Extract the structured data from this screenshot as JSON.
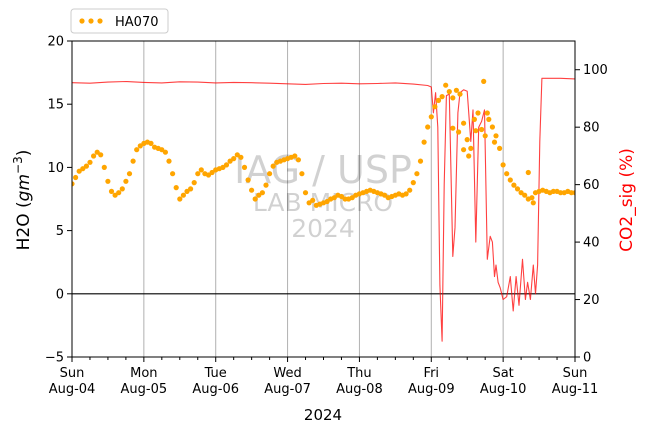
{
  "chart_data": {
    "type": "line",
    "xlabel": "2024",
    "ylabel": "H2O",
    "ylabel_unit_base": "gm",
    "ylabel_unit_exp": "−3",
    "y2label": "CO2_sig (%)",
    "x_range": [
      "2024-08-04",
      "2024-08-11"
    ],
    "ylim": [
      -5,
      20
    ],
    "y2lim": [
      0,
      110
    ],
    "yticks": [
      -5,
      0,
      5,
      10,
      15,
      20
    ],
    "y2ticks": [
      0,
      20,
      40,
      60,
      80,
      100
    ],
    "xticks": [
      {
        "day": "Sun",
        "date": "Aug-04"
      },
      {
        "day": "Mon",
        "date": "Aug-05"
      },
      {
        "day": "Tue",
        "date": "Aug-06"
      },
      {
        "day": "Wed",
        "date": "Aug-07"
      },
      {
        "day": "Thu",
        "date": "Aug-08"
      },
      {
        "day": "Fri",
        "date": "Aug-09"
      },
      {
        "day": "Sat",
        "date": "Aug-10"
      },
      {
        "day": "Sun",
        "date": "Aug-11"
      }
    ],
    "grid": "vertical at day ticks",
    "zero_line": true,
    "legend": {
      "position": "top-left",
      "entries": [
        "HA070"
      ]
    },
    "watermark": [
      "IAG / USP",
      "LAB MICRO",
      "2024"
    ],
    "colors": {
      "h2o": "#ffa500",
      "co2": "#ff0000",
      "grid": "#b0b0b0"
    },
    "series": [
      {
        "name": "HA070",
        "axis": "left",
        "style": "dots",
        "points": [
          [
            0.0,
            8.7
          ],
          [
            0.05,
            9.2
          ],
          [
            0.1,
            9.7
          ],
          [
            0.15,
            9.9
          ],
          [
            0.2,
            10.1
          ],
          [
            0.25,
            10.4
          ],
          [
            0.3,
            10.9
          ],
          [
            0.35,
            11.2
          ],
          [
            0.4,
            11.0
          ],
          [
            0.45,
            10.0
          ],
          [
            0.5,
            8.9
          ],
          [
            0.55,
            8.1
          ],
          [
            0.6,
            7.8
          ],
          [
            0.65,
            8.0
          ],
          [
            0.7,
            8.3
          ],
          [
            0.75,
            8.9
          ],
          [
            0.8,
            9.5
          ],
          [
            0.85,
            10.5
          ],
          [
            0.9,
            11.4
          ],
          [
            0.95,
            11.7
          ],
          [
            1.0,
            11.9
          ],
          [
            1.05,
            12.0
          ],
          [
            1.1,
            11.9
          ],
          [
            1.15,
            11.6
          ],
          [
            1.2,
            11.5
          ],
          [
            1.25,
            11.4
          ],
          [
            1.3,
            11.2
          ],
          [
            1.35,
            10.5
          ],
          [
            1.4,
            9.5
          ],
          [
            1.45,
            8.4
          ],
          [
            1.5,
            7.5
          ],
          [
            1.55,
            7.8
          ],
          [
            1.6,
            8.1
          ],
          [
            1.65,
            8.3
          ],
          [
            1.7,
            8.8
          ],
          [
            1.75,
            9.5
          ],
          [
            1.8,
            9.8
          ],
          [
            1.85,
            9.5
          ],
          [
            1.9,
            9.4
          ],
          [
            1.95,
            9.6
          ],
          [
            2.0,
            9.8
          ],
          [
            2.05,
            9.9
          ],
          [
            2.1,
            10.0
          ],
          [
            2.15,
            10.2
          ],
          [
            2.2,
            10.5
          ],
          [
            2.25,
            10.7
          ],
          [
            2.3,
            11.0
          ],
          [
            2.35,
            10.8
          ],
          [
            2.4,
            10.0
          ],
          [
            2.45,
            9.0
          ],
          [
            2.5,
            8.2
          ],
          [
            2.55,
            7.5
          ],
          [
            2.6,
            7.8
          ],
          [
            2.65,
            8.0
          ],
          [
            2.7,
            8.6
          ],
          [
            2.75,
            9.5
          ],
          [
            2.8,
            10.1
          ],
          [
            2.85,
            10.4
          ],
          [
            2.9,
            10.5
          ],
          [
            2.95,
            10.6
          ],
          [
            3.0,
            10.7
          ],
          [
            3.05,
            10.8
          ],
          [
            3.1,
            10.9
          ],
          [
            3.15,
            10.6
          ],
          [
            3.2,
            9.5
          ],
          [
            3.25,
            8.0
          ],
          [
            3.3,
            7.2
          ],
          [
            3.35,
            7.4
          ],
          [
            3.4,
            7.0
          ],
          [
            3.45,
            7.1
          ],
          [
            3.5,
            7.2
          ],
          [
            3.55,
            7.3
          ],
          [
            3.6,
            7.5
          ],
          [
            3.65,
            7.6
          ],
          [
            3.7,
            7.8
          ],
          [
            3.75,
            7.7
          ],
          [
            3.8,
            7.5
          ],
          [
            3.85,
            7.5
          ],
          [
            3.9,
            7.6
          ],
          [
            3.95,
            7.8
          ],
          [
            4.0,
            7.9
          ],
          [
            4.05,
            8.0
          ],
          [
            4.1,
            8.1
          ],
          [
            4.15,
            8.2
          ],
          [
            4.2,
            8.1
          ],
          [
            4.25,
            8.0
          ],
          [
            4.3,
            7.9
          ],
          [
            4.35,
            7.8
          ],
          [
            4.4,
            7.6
          ],
          [
            4.45,
            7.7
          ],
          [
            4.5,
            7.8
          ],
          [
            4.55,
            7.9
          ],
          [
            4.6,
            7.8
          ],
          [
            4.65,
            7.9
          ],
          [
            4.7,
            8.2
          ],
          [
            4.75,
            8.8
          ],
          [
            4.8,
            9.5
          ],
          [
            4.85,
            10.5
          ],
          [
            4.9,
            12.0
          ],
          [
            4.95,
            13.2
          ],
          [
            5.0,
            14.0
          ],
          [
            5.05,
            14.8
          ],
          [
            5.1,
            15.3
          ],
          [
            5.15,
            15.6
          ],
          [
            5.2,
            16.5
          ],
          [
            5.25,
            16.0
          ],
          [
            5.3,
            15.5
          ],
          [
            5.35,
            16.1
          ],
          [
            5.4,
            15.8
          ],
          [
            5.45,
            13.5
          ],
          [
            5.5,
            12.2
          ],
          [
            5.55,
            11.5
          ],
          [
            5.6,
            13.8
          ],
          [
            5.65,
            14.3
          ],
          [
            5.7,
            13.0
          ],
          [
            5.75,
            12.5
          ],
          [
            5.8,
            13.8
          ],
          [
            5.85,
            13.2
          ],
          [
            5.9,
            12.5
          ],
          [
            5.95,
            11.5
          ],
          [
            6.0,
            10.2
          ],
          [
            6.05,
            9.5
          ],
          [
            6.1,
            9.0
          ],
          [
            6.15,
            8.6
          ],
          [
            6.2,
            8.3
          ],
          [
            6.25,
            8.0
          ],
          [
            6.3,
            7.8
          ],
          [
            6.35,
            7.5
          ],
          [
            6.4,
            7.6
          ],
          [
            6.45,
            8.0
          ],
          [
            6.5,
            8.1
          ],
          [
            6.55,
            8.2
          ],
          [
            6.6,
            8.1
          ],
          [
            6.65,
            8.0
          ],
          [
            6.7,
            8.1
          ],
          [
            6.75,
            8.1
          ],
          [
            6.8,
            8.0
          ],
          [
            6.85,
            8.0
          ],
          [
            6.9,
            8.1
          ],
          [
            6.95,
            8.0
          ],
          [
            7.0,
            8.0
          ]
        ],
        "extra_points": [
          [
            5.3,
            13.1
          ],
          [
            5.38,
            12.8
          ],
          [
            5.45,
            11.4
          ],
          [
            5.52,
            10.9
          ],
          [
            5.62,
            12.9
          ],
          [
            5.73,
            16.8
          ],
          [
            5.78,
            14.3
          ],
          [
            5.88,
            12.0
          ],
          [
            6.35,
            9.6
          ],
          [
            6.42,
            7.2
          ]
        ]
      },
      {
        "name": "CO2_sig",
        "axis": "right",
        "style": "line",
        "points": [
          [
            0.0,
            95.5
          ],
          [
            0.25,
            95.3
          ],
          [
            0.5,
            95.7
          ],
          [
            0.75,
            95.9
          ],
          [
            1.0,
            95.6
          ],
          [
            1.25,
            95.4
          ],
          [
            1.5,
            95.8
          ],
          [
            1.75,
            95.7
          ],
          [
            2.0,
            95.4
          ],
          [
            2.25,
            95.6
          ],
          [
            2.5,
            95.5
          ],
          [
            2.75,
            95.3
          ],
          [
            3.0,
            95.1
          ],
          [
            3.25,
            94.9
          ],
          [
            3.5,
            95.2
          ],
          [
            3.75,
            95.3
          ],
          [
            4.0,
            95.1
          ],
          [
            4.25,
            95.2
          ],
          [
            4.5,
            95.4
          ],
          [
            4.75,
            95.0
          ],
          [
            4.95,
            94.5
          ],
          [
            5.0,
            94.0
          ],
          [
            5.03,
            85.0
          ],
          [
            5.06,
            92.0
          ],
          [
            5.09,
            80.0
          ],
          [
            5.12,
            25.0
          ],
          [
            5.15,
            5.5
          ],
          [
            5.18,
            60.0
          ],
          [
            5.21,
            91.0
          ],
          [
            5.25,
            91.5
          ],
          [
            5.3,
            35.0
          ],
          [
            5.33,
            45.0
          ],
          [
            5.37,
            85.0
          ],
          [
            5.4,
            92.0
          ],
          [
            5.45,
            93.0
          ],
          [
            5.5,
            92.5
          ],
          [
            5.55,
            75.0
          ],
          [
            5.58,
            86.0
          ],
          [
            5.62,
            40.0
          ],
          [
            5.66,
            80.0
          ],
          [
            5.7,
            82.0
          ],
          [
            5.74,
            86.0
          ],
          [
            5.78,
            34.0
          ],
          [
            5.82,
            42.0
          ],
          [
            5.85,
            40.0
          ],
          [
            5.88,
            28.0
          ],
          [
            5.9,
            32.0
          ],
          [
            5.93,
            26.0
          ],
          [
            5.96,
            24.0
          ],
          [
            6.0,
            20.0
          ],
          [
            6.05,
            21.0
          ],
          [
            6.1,
            28.0
          ],
          [
            6.14,
            16.0
          ],
          [
            6.18,
            28.0
          ],
          [
            6.22,
            18.0
          ],
          [
            6.27,
            34.0
          ],
          [
            6.31,
            20.0
          ],
          [
            6.34,
            26.0
          ],
          [
            6.38,
            20.0
          ],
          [
            6.42,
            32.0
          ],
          [
            6.45,
            22.0
          ],
          [
            6.48,
            32.0
          ],
          [
            6.51,
            75.0
          ],
          [
            6.54,
            97.0
          ],
          [
            6.6,
            97.0
          ],
          [
            6.8,
            97.0
          ],
          [
            7.0,
            96.8
          ]
        ]
      }
    ]
  }
}
